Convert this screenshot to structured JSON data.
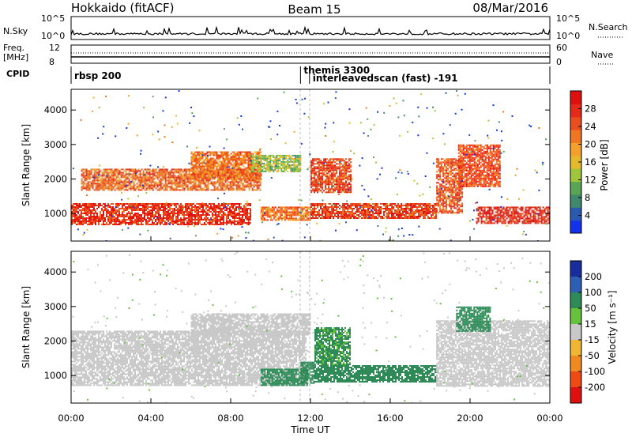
{
  "header": {
    "station": "Hokkaido (fitACF)",
    "beam": "Beam 15",
    "date": "08/Mar/2016"
  },
  "top_panels": {
    "nsky_label": "N.Sky",
    "nsky_ticks": [
      "10^5",
      "10^0"
    ],
    "nsearch_label": "N.Search",
    "nsearch_ticks": [
      "10^5",
      "10^0"
    ],
    "freq_label": "Freq.",
    "freq_unit": "[MHz]",
    "freq_ticks": [
      "12",
      "8"
    ],
    "nave_label": "Nave",
    "nave_ticks": [
      "60",
      "0"
    ],
    "cpid_label": "CPID",
    "cpid_entries": [
      {
        "text": "rbsp 200",
        "start_hour": 0.0
      },
      {
        "text": "themis 3300",
        "start_hour": 11.5
      },
      {
        "text": "interleavedscan (fast) -191",
        "start_hour": 11.95
      }
    ]
  },
  "chart_data": [
    {
      "type": "heatmap",
      "panel": "power",
      "ylabel": "Slant Range [km]",
      "xlabel": "Time UT",
      "x_ticks": [
        "00:00",
        "04:00",
        "08:00",
        "12:00",
        "16:00",
        "20:00",
        "00:00"
      ],
      "xlim_hours": [
        0,
        24
      ],
      "y_ticks": [
        1000,
        2000,
        3000,
        4000
      ],
      "ylim": [
        200,
        4600
      ],
      "colorbar": {
        "label": "Power [dB]",
        "ticks": [
          4,
          8,
          12,
          16,
          20,
          24,
          28
        ],
        "range": [
          0,
          32
        ],
        "colors": [
          "#1133ee",
          "#2a59b0",
          "#3f8a6e",
          "#59a554",
          "#9fc53a",
          "#e6b82b",
          "#f5a02a",
          "#f07622",
          "#ea4d1e",
          "#e52a1a",
          "#e01010"
        ]
      },
      "echo_regions": [
        {
          "t0": 0.0,
          "t1": 9.0,
          "r0": 700,
          "r1": 1300,
          "value": 27
        },
        {
          "t0": 0.5,
          "t1": 9.5,
          "r0": 1700,
          "r1": 2300,
          "value": 23
        },
        {
          "t0": 6.0,
          "t1": 9.5,
          "r0": 2000,
          "r1": 2800,
          "value": 22
        },
        {
          "t0": 9.0,
          "t1": 11.5,
          "r0": 2200,
          "r1": 2700,
          "value": 13
        },
        {
          "t0": 9.5,
          "t1": 12.0,
          "r0": 800,
          "r1": 1200,
          "value": 22
        },
        {
          "t0": 12.0,
          "t1": 14.0,
          "r0": 1600,
          "r1": 2600,
          "value": 25
        },
        {
          "t0": 12.0,
          "t1": 18.3,
          "r0": 850,
          "r1": 1300,
          "value": 26
        },
        {
          "t0": 18.3,
          "t1": 19.6,
          "r0": 1000,
          "r1": 2600,
          "value": 24
        },
        {
          "t0": 19.4,
          "t1": 21.5,
          "r0": 1800,
          "r1": 3000,
          "value": 25
        },
        {
          "t0": 20.3,
          "t1": 24.0,
          "r0": 700,
          "r1": 1200,
          "value": 28
        }
      ]
    },
    {
      "type": "heatmap",
      "panel": "velocity",
      "ylabel": "Slant Range [km]",
      "xlabel": "Time UT",
      "x_ticks": [
        "00:00",
        "04:00",
        "08:00",
        "12:00",
        "16:00",
        "20:00",
        "00:00"
      ],
      "xlim_hours": [
        0,
        24
      ],
      "y_ticks": [
        1000,
        2000,
        3000,
        4000
      ],
      "ylim": [
        200,
        4600
      ],
      "colorbar": {
        "label": "Velocity [m s⁻¹]",
        "ticks": [
          200,
          100,
          50,
          15,
          -15,
          -50,
          -100,
          -200
        ],
        "colors": [
          "#1a2d9c",
          "#2d5fb5",
          "#2e8b57",
          "#66c23a",
          "#c8c8c8",
          "#f0b632",
          "#f08a1e",
          "#f04a14",
          "#e01010"
        ]
      },
      "echo_regions": [
        {
          "t0": 0.0,
          "t1": 11.8,
          "r0": 700,
          "r1": 2300,
          "value": 0
        },
        {
          "t0": 6.0,
          "t1": 12.0,
          "r0": 2200,
          "r1": 2800,
          "value": 0
        },
        {
          "t0": 9.5,
          "t1": 11.8,
          "r0": 700,
          "r1": 1200,
          "value": 40
        },
        {
          "t0": 11.5,
          "t1": 12.2,
          "r0": 800,
          "r1": 1400,
          "value": 70
        },
        {
          "t0": 12.2,
          "t1": 14.0,
          "r0": 1300,
          "r1": 2400,
          "value": 35
        },
        {
          "t0": 12.2,
          "t1": 18.3,
          "r0": 800,
          "r1": 1300,
          "value": 40
        },
        {
          "t0": 18.3,
          "t1": 24.0,
          "r0": 700,
          "r1": 2600,
          "value": 0
        },
        {
          "t0": 19.3,
          "t1": 21.0,
          "r0": 2300,
          "r1": 3000,
          "value": 40
        }
      ]
    }
  ]
}
